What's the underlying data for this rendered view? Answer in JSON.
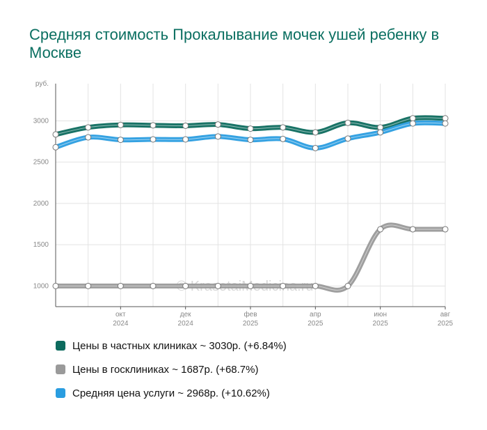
{
  "chart_data": {
    "type": "line",
    "title": "Средняя стоимость Прокалывание мочек ушей ребенку в Москве",
    "ylabel": "руб.",
    "ylim": [
      750,
      3450
    ],
    "yticks": [
      1000,
      1500,
      2000,
      2500,
      3000
    ],
    "x": [
      "2024-08",
      "2024-09",
      "2024-10",
      "2024-11",
      "2024-12",
      "2025-01",
      "2025-02",
      "2025-03",
      "2025-04",
      "2025-05",
      "2025-06",
      "2025-07",
      "2025-08"
    ],
    "xtick_labels": [
      {
        "month": "окт",
        "year": "2024"
      },
      {
        "month": "дек",
        "year": "2024"
      },
      {
        "month": "фев",
        "year": "2025"
      },
      {
        "month": "апр",
        "year": "2025"
      },
      {
        "month": "июн",
        "year": "2025"
      },
      {
        "month": "авг",
        "year": "2025"
      }
    ],
    "grid": true,
    "watermark": "© KrasotaiMedicina.ru",
    "series": [
      {
        "name": "Цены в частных клиниках",
        "color": "#0d6b5e",
        "values": [
          2835,
          2920,
          2950,
          2945,
          2940,
          2955,
          2905,
          2920,
          2860,
          2975,
          2920,
          3030,
          3030
        ]
      },
      {
        "name": "Цены в госклиниках",
        "color": "#9a9a9a",
        "values": [
          1000,
          1000,
          1000,
          1000,
          1000,
          1000,
          1000,
          1000,
          1000,
          1000,
          1687,
          1687,
          1687
        ]
      },
      {
        "name": "Средняя цена услуги",
        "color": "#2a9de0",
        "values": [
          2680,
          2800,
          2770,
          2775,
          2775,
          2810,
          2770,
          2780,
          2670,
          2785,
          2860,
          2968,
          2968
        ]
      }
    ]
  },
  "legend": {
    "items": [
      {
        "label": "Цены в частных клиниках ~ 3030р. (+6.84%)",
        "color": "#0d6b5e"
      },
      {
        "label": "Цены в госклиниках ~ 1687р. (+68.7%)",
        "color": "#9a9a9a"
      },
      {
        "label": "Средняя цена услуги ~ 2968р. (+10.62%)",
        "color": "#2a9de0"
      }
    ]
  }
}
